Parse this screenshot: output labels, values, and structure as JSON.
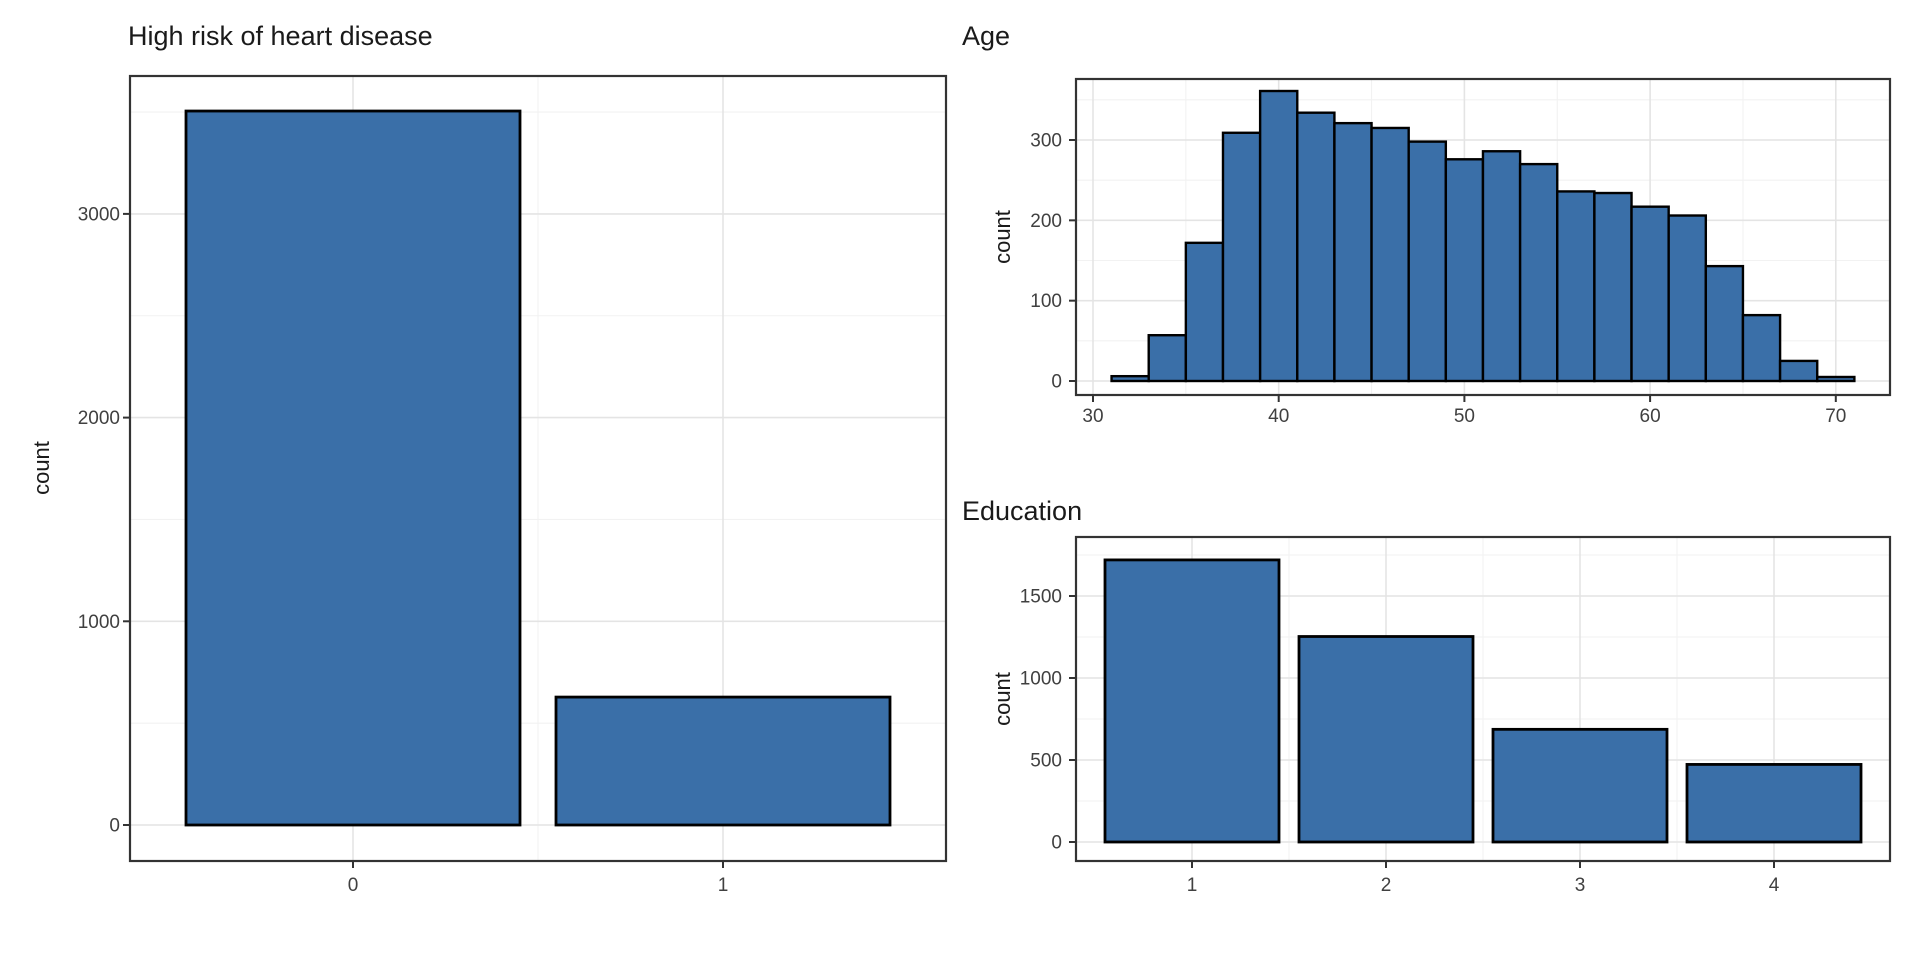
{
  "figure": {
    "background": "#ffffff",
    "styles": {
      "bar_fill": "#3a6fa8",
      "bar_stroke": "#000000",
      "panel_border": "#333333",
      "grid_major": "#e4e4e4",
      "grid_minor": "#f2f2f2",
      "tick_text_color": "#404040",
      "title_color": "#1a1a1a",
      "tick_mark_color": "#333333"
    }
  },
  "chart_data": [
    {
      "id": "chd",
      "type": "bar",
      "title": "High risk of heart disease",
      "xlabel": "",
      "ylabel": "count",
      "categories": [
        "0",
        "1"
      ],
      "values": [
        3505,
        628
      ],
      "yticks": [
        0,
        1000,
        2000,
        3000
      ],
      "yminor": [
        500,
        1500,
        2500,
        3500
      ],
      "ylim": [
        0,
        3680
      ],
      "grid": "on",
      "legend": "none"
    },
    {
      "id": "age",
      "type": "histogram",
      "title": "Age",
      "xlabel": "",
      "ylabel": "count",
      "bin_start": 31,
      "bin_width": 2,
      "counts": [
        6,
        57,
        172,
        309,
        361,
        334,
        321,
        315,
        298,
        276,
        286,
        270,
        236,
        234,
        217,
        206,
        143,
        82,
        25,
        5
      ],
      "xticks": [
        30,
        40,
        50,
        60,
        70
      ],
      "xminor": [
        35,
        45,
        55,
        65
      ],
      "yticks": [
        0,
        100,
        200,
        300
      ],
      "yminor": [
        50,
        150,
        250,
        350
      ],
      "xlim": [
        29.1,
        72.9
      ],
      "ylim": [
        0,
        376
      ],
      "grid": "on",
      "legend": "none"
    },
    {
      "id": "education",
      "type": "bar",
      "title": "Education",
      "xlabel": "",
      "ylabel": "count",
      "categories": [
        "1",
        "2",
        "3",
        "4"
      ],
      "values": [
        1720,
        1253,
        687,
        473
      ],
      "yticks": [
        0,
        500,
        1000,
        1500
      ],
      "yminor": [
        250,
        750,
        1250,
        1750
      ],
      "ylim": [
        0,
        1860
      ],
      "grid": "on",
      "legend": "none"
    }
  ]
}
